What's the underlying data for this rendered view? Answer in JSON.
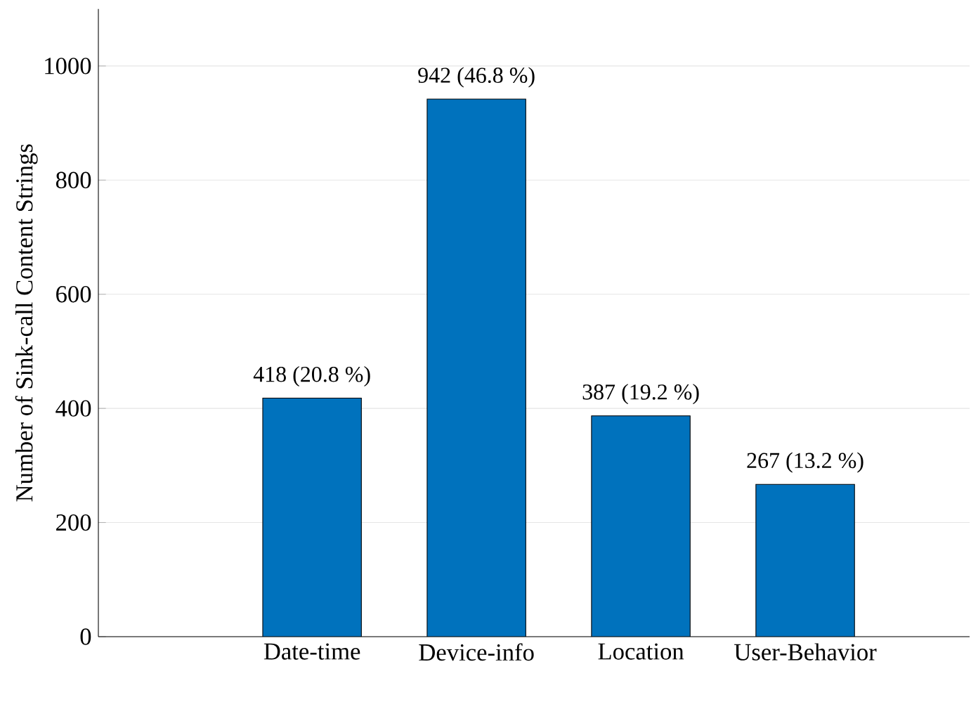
{
  "chart_data": {
    "type": "bar",
    "ylabel": "Number of Sink-call Content Strings",
    "categories": [
      "Date-time",
      "Device-info",
      "Location",
      "User-Behavior"
    ],
    "values": [
      418,
      942,
      387,
      267
    ],
    "value_labels": [
      "418 (20.8 %)",
      "942 (46.8 %)",
      "387 (19.2 %)",
      "267 (13.2 %)"
    ],
    "color": "#0072bd",
    "ylim": [
      0,
      1100
    ],
    "yticks": [
      0,
      200,
      400,
      600,
      800,
      1000
    ],
    "grid": "y"
  }
}
